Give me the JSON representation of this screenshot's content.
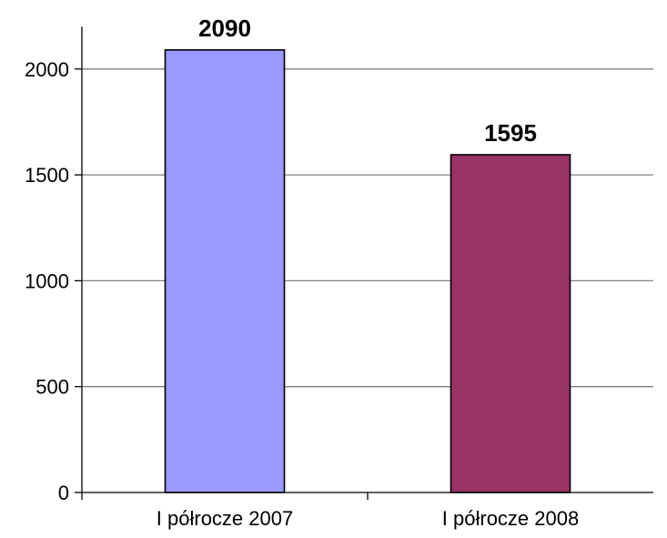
{
  "chart_data": {
    "type": "bar",
    "title": "",
    "xlabel": "",
    "ylabel": "",
    "categories": [
      "I półrocze 2007",
      "I półrocze 2008"
    ],
    "values": [
      2090,
      1595
    ],
    "data_labels": [
      "2090",
      "1595"
    ],
    "bar_colors": [
      "#9999ff",
      "#993366"
    ],
    "ylim": [
      0,
      2200
    ],
    "yticks": [
      0,
      500,
      1000,
      1500,
      2000
    ],
    "ytick_labels": [
      "0",
      "500",
      "1000",
      "1500",
      "2000"
    ],
    "grid": true,
    "legend": "none"
  }
}
